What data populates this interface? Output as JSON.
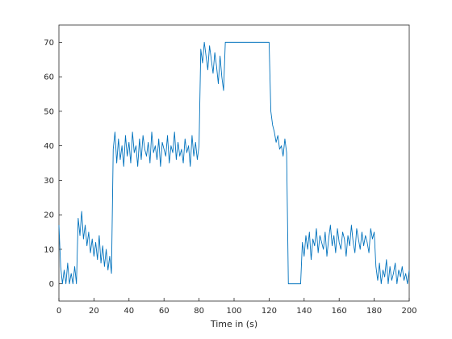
{
  "chart_data": {
    "type": "line",
    "title": "",
    "xlabel": "Time in (s)",
    "ylabel": "",
    "xlim": [
      0,
      200
    ],
    "ylim": [
      -5,
      75
    ],
    "xticks": [
      0,
      20,
      40,
      60,
      80,
      100,
      120,
      140,
      160,
      180,
      200
    ],
    "yticks": [
      0,
      10,
      20,
      30,
      40,
      50,
      60,
      70
    ],
    "grid": false,
    "legend": "none",
    "series": [
      {
        "color": "#0072bd",
        "x": [
          0,
          1,
          2,
          3,
          4,
          5,
          6,
          7,
          8,
          9,
          10,
          11,
          12,
          13,
          14,
          15,
          16,
          17,
          18,
          19,
          20,
          21,
          22,
          23,
          24,
          25,
          26,
          27,
          28,
          29,
          30,
          31,
          32,
          33,
          34,
          35,
          36,
          37,
          38,
          39,
          40,
          41,
          42,
          43,
          44,
          45,
          46,
          47,
          48,
          49,
          50,
          51,
          52,
          53,
          54,
          55,
          56,
          57,
          58,
          59,
          60,
          61,
          62,
          63,
          64,
          65,
          66,
          67,
          68,
          69,
          70,
          71,
          72,
          73,
          74,
          75,
          76,
          77,
          78,
          79,
          80,
          81,
          82,
          83,
          84,
          85,
          86,
          87,
          88,
          89,
          90,
          91,
          92,
          93,
          94,
          95,
          96,
          97,
          98,
          99,
          100,
          101,
          102,
          103,
          104,
          105,
          106,
          107,
          108,
          109,
          110,
          111,
          112,
          113,
          114,
          115,
          116,
          117,
          118,
          119,
          120,
          121,
          122,
          123,
          124,
          125,
          126,
          127,
          128,
          129,
          130,
          131,
          132,
          133,
          134,
          135,
          136,
          137,
          138,
          139,
          140,
          141,
          142,
          143,
          144,
          145,
          146,
          147,
          148,
          149,
          150,
          151,
          152,
          153,
          154,
          155,
          156,
          157,
          158,
          159,
          160,
          161,
          162,
          163,
          164,
          165,
          166,
          167,
          168,
          169,
          170,
          171,
          172,
          173,
          174,
          175,
          176,
          177,
          178,
          179,
          180,
          181,
          182,
          183,
          184,
          185,
          186,
          187,
          188,
          189,
          190,
          191,
          192,
          193,
          194,
          195,
          196,
          197,
          198,
          199,
          200
        ],
        "y": [
          17,
          5,
          0,
          4,
          0,
          6,
          0,
          3,
          0,
          5,
          0,
          19,
          14,
          21,
          13,
          17,
          11,
          15,
          9,
          13,
          8,
          12,
          7,
          14,
          6,
          11,
          5,
          10,
          4,
          8,
          3,
          39,
          44,
          35,
          42,
          36,
          40,
          34,
          43,
          37,
          41,
          35,
          44,
          38,
          40,
          34,
          42,
          36,
          43,
          39,
          37,
          41,
          35,
          44,
          38,
          40,
          36,
          42,
          34,
          41,
          39,
          37,
          43,
          35,
          40,
          38,
          44,
          36,
          41,
          37,
          39,
          35,
          42,
          38,
          40,
          34,
          43,
          37,
          41,
          36,
          40,
          68,
          64,
          70,
          66,
          62,
          69,
          65,
          61,
          67,
          63,
          58,
          66,
          60,
          56,
          70,
          70,
          70,
          70,
          70,
          70,
          70,
          70,
          70,
          70,
          70,
          70,
          70,
          70,
          70,
          70,
          70,
          70,
          70,
          70,
          70,
          70,
          70,
          70,
          70,
          70,
          50,
          46,
          44,
          41,
          43,
          39,
          40,
          37,
          42,
          38,
          0,
          0,
          0,
          0,
          0,
          0,
          0,
          0,
          12,
          8,
          14,
          10,
          15,
          7,
          13,
          11,
          16,
          9,
          14,
          12,
          10,
          15,
          8,
          13,
          17,
          11,
          14,
          9,
          16,
          12,
          10,
          15,
          13,
          8,
          14,
          11,
          17,
          12,
          9,
          16,
          13,
          10,
          15,
          11,
          14,
          12,
          9,
          16,
          13,
          15,
          5,
          1,
          6,
          0,
          4,
          2,
          7,
          0,
          5,
          1,
          3,
          6,
          0,
          4,
          2,
          5,
          1,
          3,
          0,
          4
        ]
      }
    ]
  }
}
